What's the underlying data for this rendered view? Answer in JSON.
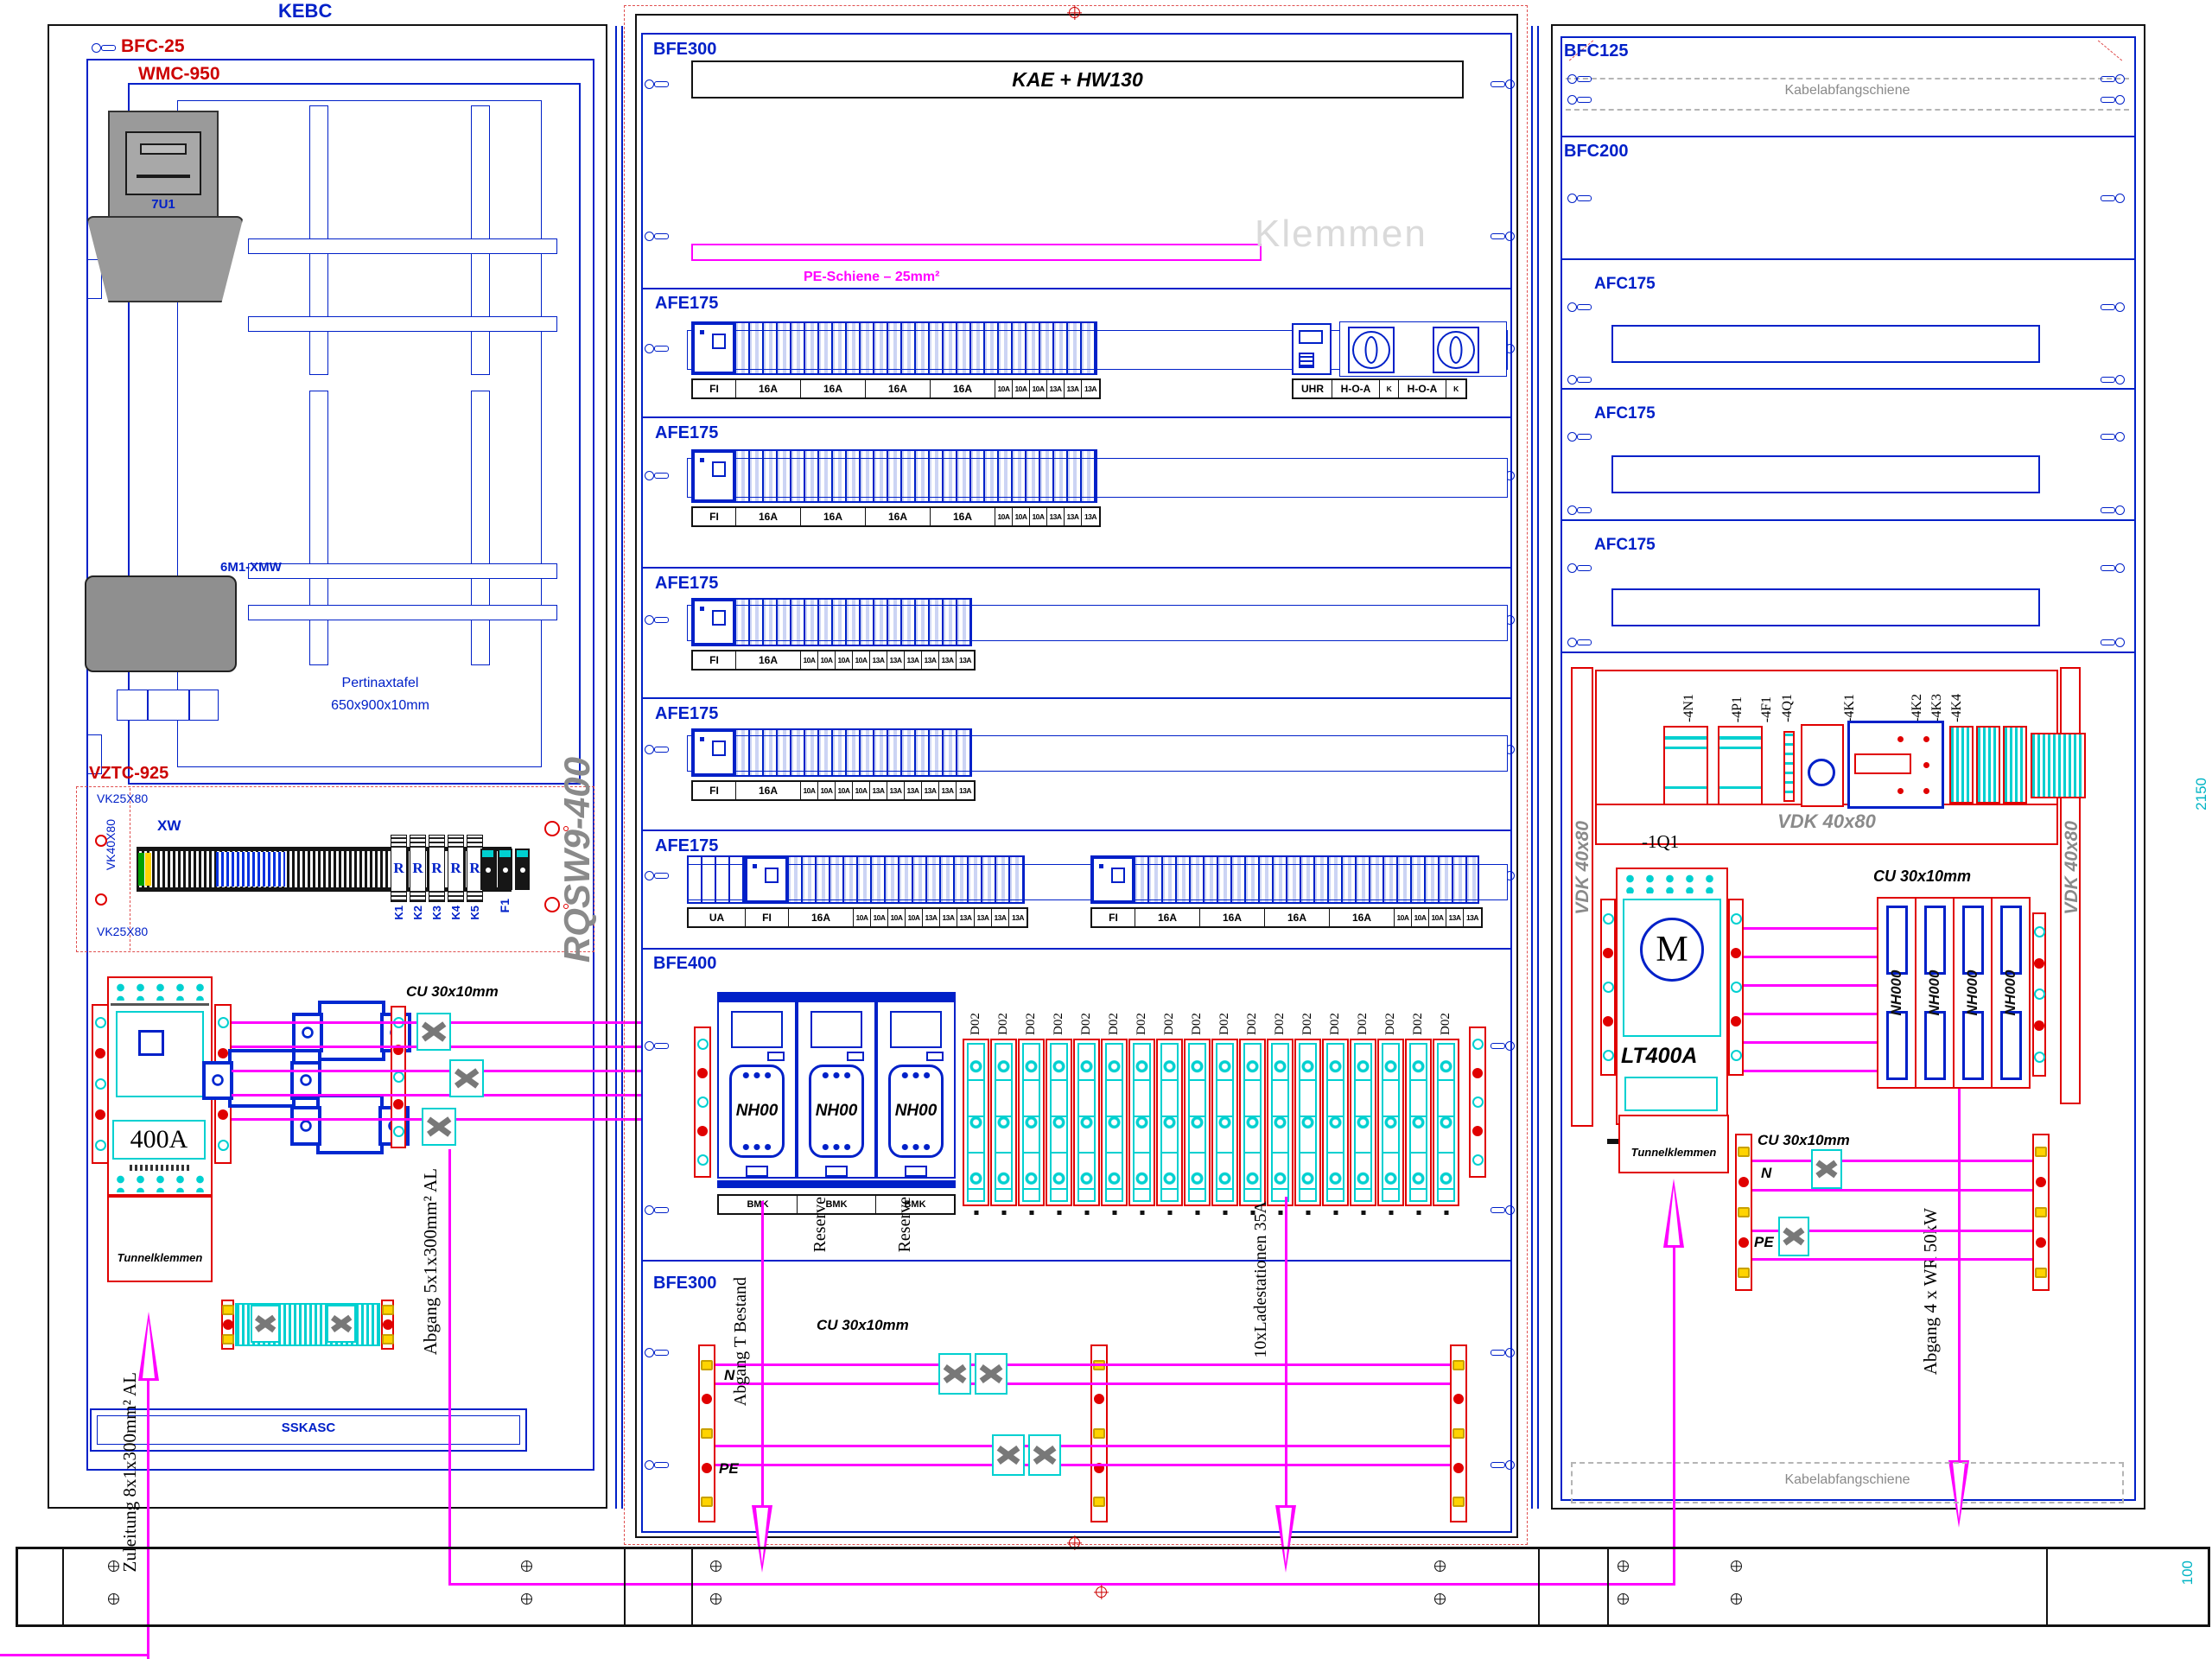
{
  "drawing": {
    "title_top": "KEBC",
    "dim_right_mid": "2150",
    "dim_right_bottom": "100"
  },
  "left_panel": {
    "frame_outer_label": "BFC-25",
    "frame_inner_label": "WMC-950",
    "meter_tag": "7U1",
    "device_tag": "6M1-XMW",
    "board_name": "Pertinaxtafel",
    "board_size": "650x900x10mm",
    "section_label": "VZTC-925",
    "duct_top": "VK25X80",
    "duct_left": "VK40X80",
    "duct_bottom": "VK25X80",
    "terminal_strip_tag": "XW",
    "relay_letter": "R",
    "relays": [
      "K1",
      "K2",
      "K3",
      "K4",
      "K5"
    ],
    "fuse_tag": "F1",
    "frame_code": "RQSW9-400",
    "main_breaker_rating": "400A",
    "tunnel_label": "Tunnelklemmen",
    "busbar_label": "CU 30x10mm",
    "rail_label": "SSKASC",
    "incoming_note": "Zuleitung 8x1x300mm² AL",
    "outgoing_note": "Abgang 5x1x300mm² AL"
  },
  "middle_panel": {
    "top": {
      "label": "BFE300",
      "box_label": "KAE + HW130",
      "pe_label": "PE-Schiene – 25mm²",
      "watermark": "Klemmen"
    },
    "rows": [
      {
        "title": "AFE175",
        "labels": [
          {
            "t": "FI",
            "w": 50
          },
          {
            "t": "16A",
            "w": 75
          },
          {
            "t": "16A",
            "w": 75
          },
          {
            "t": "16A",
            "w": 75
          },
          {
            "t": "16A",
            "w": 75
          },
          {
            "t": "10A",
            "w": 20
          },
          {
            "t": "10A",
            "w": 20
          },
          {
            "t": "10A",
            "w": 20
          },
          {
            "t": "13A",
            "w": 20
          },
          {
            "t": "13A",
            "w": 20
          },
          {
            "t": "13A",
            "w": 20
          }
        ],
        "right_labels": [
          {
            "t": "UHR",
            "w": 45
          },
          {
            "t": "H-O-A",
            "w": 55
          },
          {
            "t": "K",
            "w": 22
          },
          {
            "t": "H-O-A",
            "w": 55
          },
          {
            "t": "K",
            "w": 22
          }
        ]
      },
      {
        "title": "AFE175",
        "labels": [
          {
            "t": "FI",
            "w": 50
          },
          {
            "t": "16A",
            "w": 75
          },
          {
            "t": "16A",
            "w": 75
          },
          {
            "t": "16A",
            "w": 75
          },
          {
            "t": "16A",
            "w": 75
          },
          {
            "t": "10A",
            "w": 20
          },
          {
            "t": "10A",
            "w": 20
          },
          {
            "t": "10A",
            "w": 20
          },
          {
            "t": "13A",
            "w": 20
          },
          {
            "t": "13A",
            "w": 20
          },
          {
            "t": "13A",
            "w": 20
          }
        ]
      },
      {
        "title": "AFE175",
        "labels": [
          {
            "t": "FI",
            "w": 50
          },
          {
            "t": "16A",
            "w": 75
          },
          {
            "t": "10A",
            "w": 20
          },
          {
            "t": "10A",
            "w": 20
          },
          {
            "t": "10A",
            "w": 20
          },
          {
            "t": "10A",
            "w": 20
          },
          {
            "t": "13A",
            "w": 20
          },
          {
            "t": "13A",
            "w": 20
          },
          {
            "t": "13A",
            "w": 20
          },
          {
            "t": "13A",
            "w": 20
          },
          {
            "t": "13A",
            "w": 20
          },
          {
            "t": "13A",
            "w": 20
          }
        ]
      },
      {
        "title": "AFE175",
        "labels": [
          {
            "t": "FI",
            "w": 50
          },
          {
            "t": "16A",
            "w": 75
          },
          {
            "t": "10A",
            "w": 20
          },
          {
            "t": "10A",
            "w": 20
          },
          {
            "t": "10A",
            "w": 20
          },
          {
            "t": "10A",
            "w": 20
          },
          {
            "t": "13A",
            "w": 20
          },
          {
            "t": "13A",
            "w": 20
          },
          {
            "t": "13A",
            "w": 20
          },
          {
            "t": "13A",
            "w": 20
          },
          {
            "t": "13A",
            "w": 20
          },
          {
            "t": "13A",
            "w": 20
          }
        ]
      },
      {
        "title": "AFE175",
        "labels_a": [
          {
            "t": "UA",
            "w": 66
          },
          {
            "t": "FI",
            "w": 50
          },
          {
            "t": "16A",
            "w": 75
          },
          {
            "t": "10A",
            "w": 20
          },
          {
            "t": "10A",
            "w": 20
          },
          {
            "t": "10A",
            "w": 20
          },
          {
            "t": "10A",
            "w": 20
          },
          {
            "t": "13A",
            "w": 20
          },
          {
            "t": "13A",
            "w": 20
          },
          {
            "t": "13A",
            "w": 20
          },
          {
            "t": "13A",
            "w": 20
          },
          {
            "t": "13A",
            "w": 20
          },
          {
            "t": "13A",
            "w": 20
          }
        ],
        "labels_b": [
          {
            "t": "FI",
            "w": 50
          },
          {
            "t": "16A",
            "w": 75
          },
          {
            "t": "16A",
            "w": 75
          },
          {
            "t": "16A",
            "w": 75
          },
          {
            "t": "16A",
            "w": 75
          },
          {
            "t": "10A",
            "w": 20
          },
          {
            "t": "10A",
            "w": 20
          },
          {
            "t": "10A",
            "w": 20
          },
          {
            "t": "13A",
            "w": 20
          },
          {
            "t": "13A",
            "w": 20
          }
        ]
      }
    ],
    "bfe400": {
      "label": "BFE400",
      "fuses": [
        "NH00",
        "NH00",
        "NH00"
      ],
      "fuse_tags": [
        "BMK",
        "BMK",
        "BMK"
      ],
      "d02": [
        "D02",
        "D02",
        "D02",
        "D02",
        "D02",
        "D02",
        "D02",
        "D02",
        "D02",
        "D02",
        "D02",
        "D02",
        "D02",
        "D02",
        "D02",
        "D02",
        "D02",
        "D02"
      ],
      "reserve": [
        "Reserve",
        "Reserve"
      ]
    },
    "bottom": {
      "label": "BFE300",
      "busbar_label": "CU 30x10mm",
      "n": "N",
      "pe": "PE",
      "outgoing_note": "Abgang T Bestand",
      "load_note": "10xLadestationen 35A"
    }
  },
  "right_panel": {
    "sections": [
      {
        "label": "BFC125",
        "note": "Kabelabfangschiene"
      },
      {
        "label": "BFC200"
      },
      {
        "label": "AFC175"
      },
      {
        "label": "AFC175"
      },
      {
        "label": "AFC175"
      }
    ],
    "tags": [
      "-4N1",
      "-4P1",
      "-4F1",
      "-4Q1",
      "-4K1",
      "-4K2",
      "-4K3",
      "-4K4"
    ],
    "duct_bottom_label": "VDK 40x80",
    "duct_left_label": "VDK 40x80",
    "duct_right_label": "VDK 40x80",
    "starter_tag": "-1Q1",
    "motor_letter": "M",
    "starter_rating": "LT400A",
    "fuses": [
      "NH000",
      "NH000",
      "NH000",
      "NH000"
    ],
    "busbar_label_top": "CU 30x10mm",
    "tunnel_label": "Tunnelklemmen",
    "busbar_label_bottom": "CU 30x10mm",
    "n": "N",
    "pe": "PE",
    "outgoing_note": "Abgang 4 x WR 50kW",
    "cable_rail_label": "Kabelabfangschiene"
  }
}
